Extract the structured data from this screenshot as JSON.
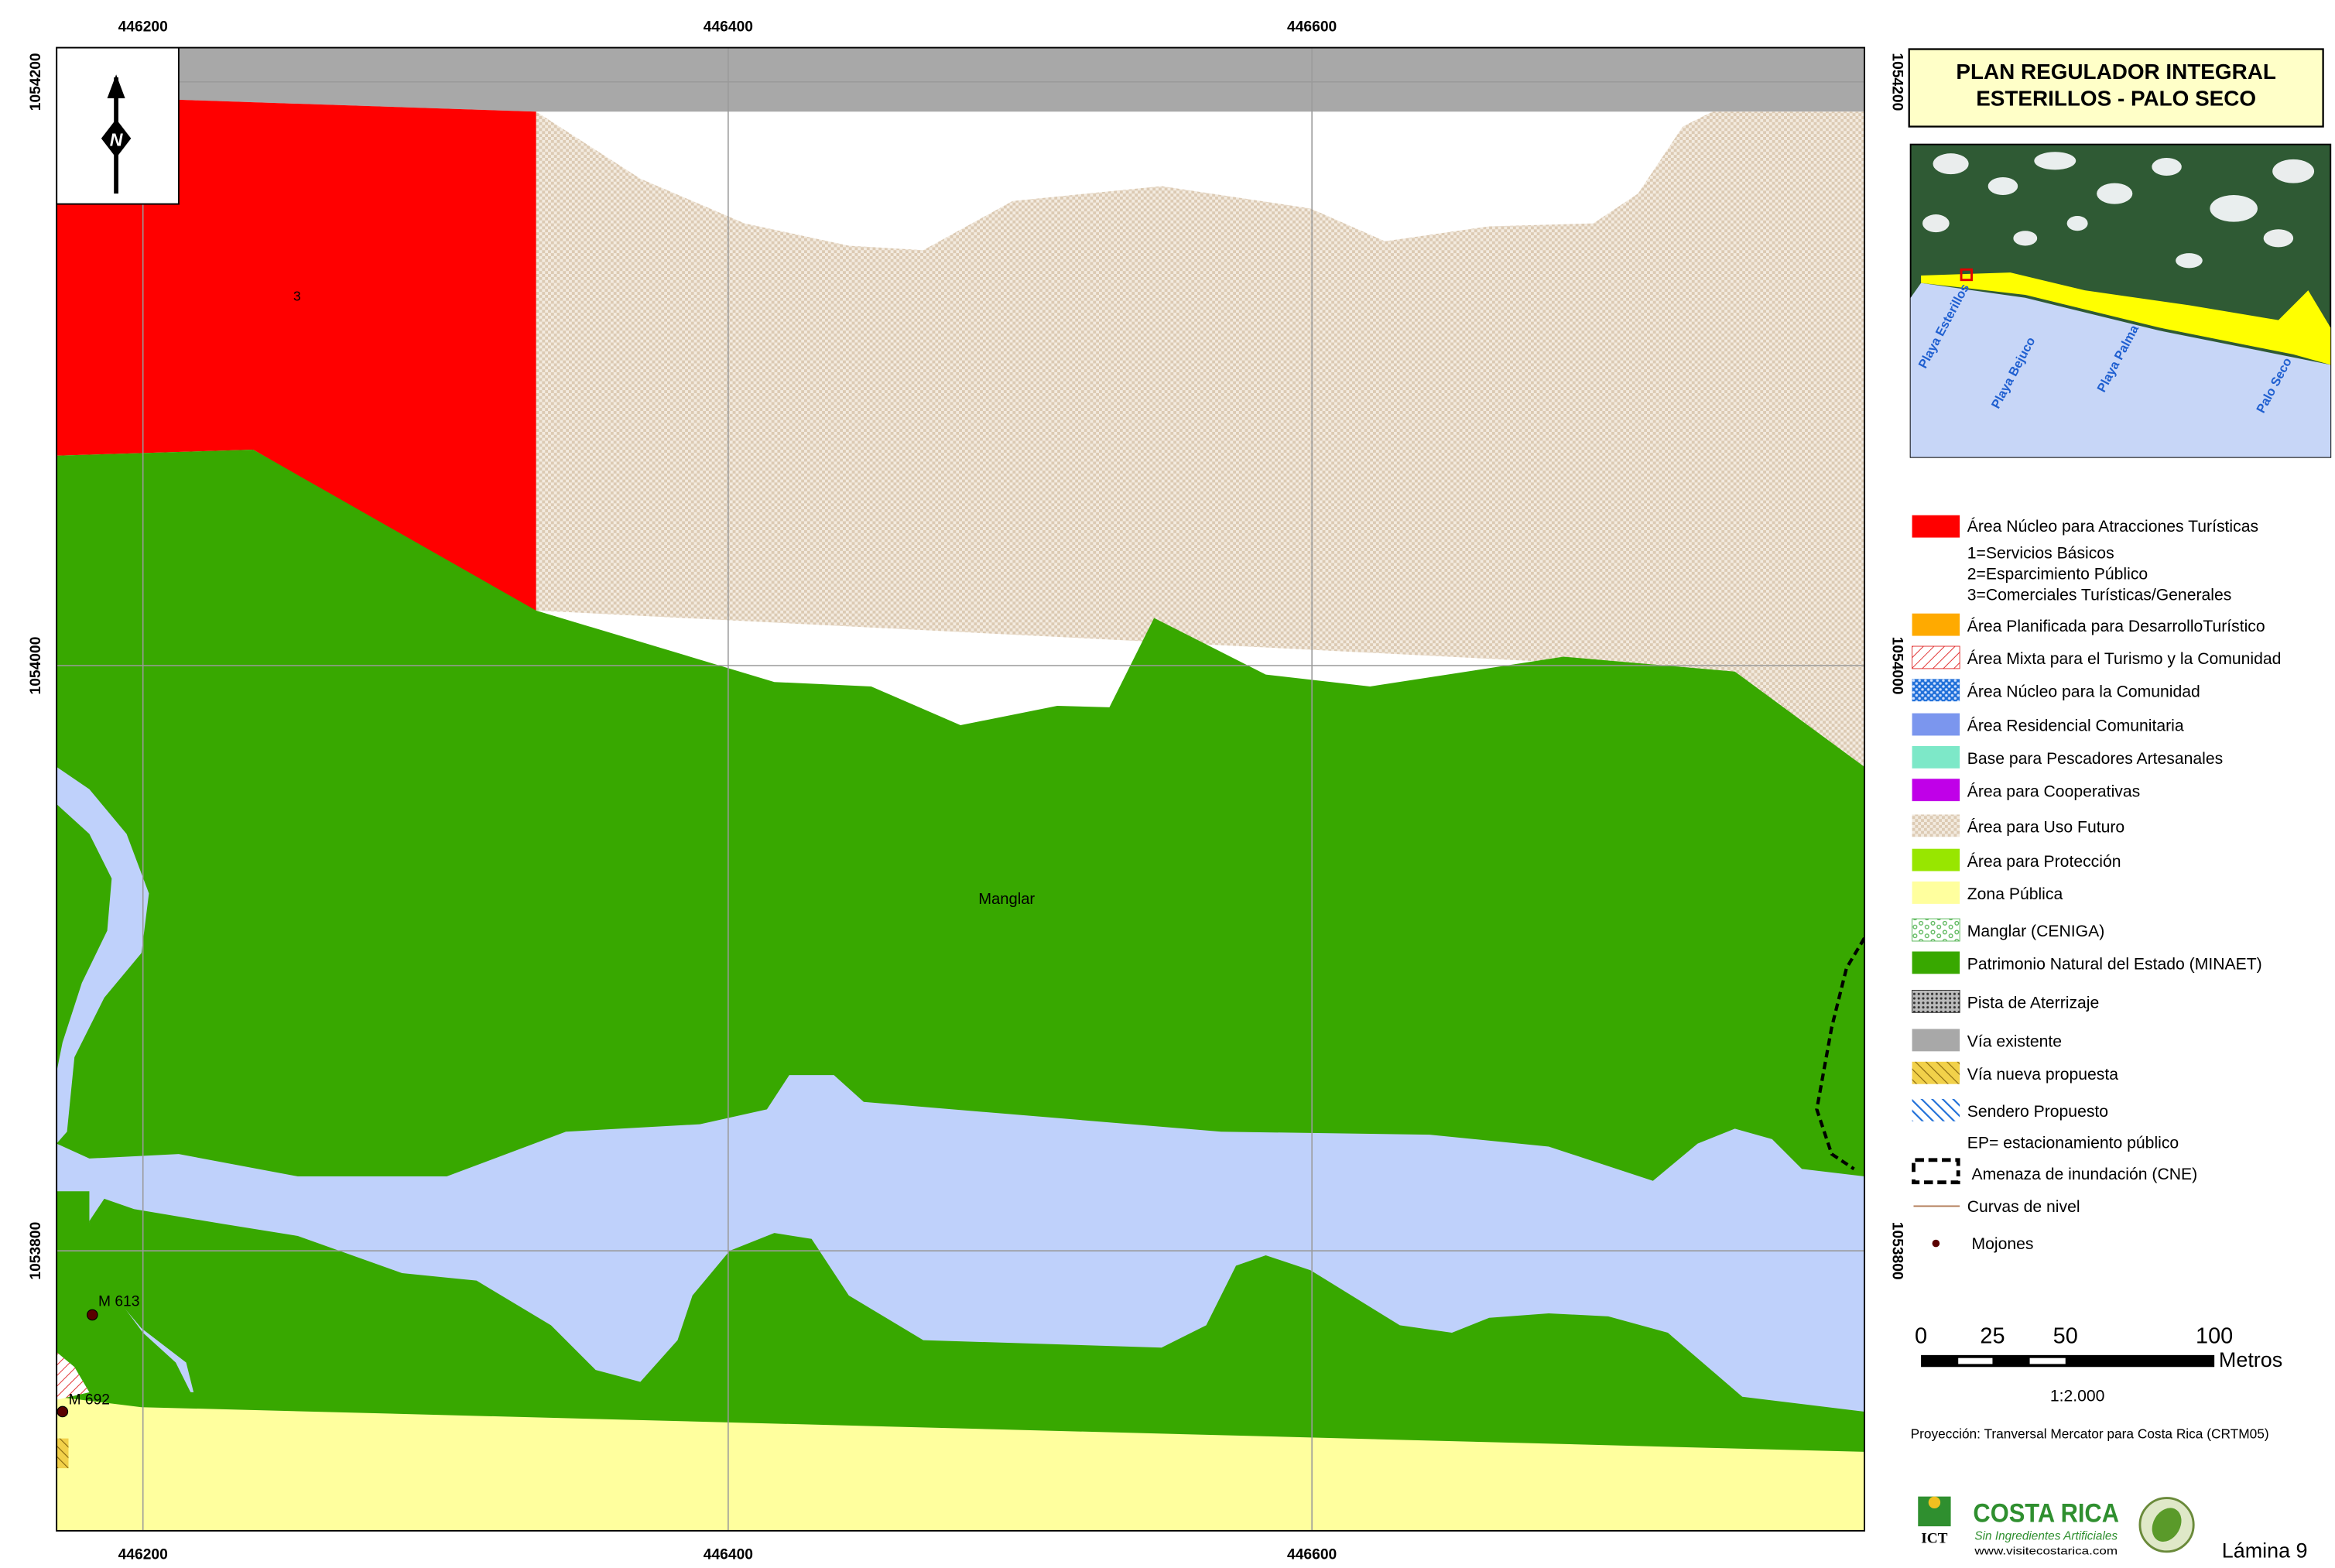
{
  "header": {
    "title_line1": "PLAN REGULADOR INTEGRAL",
    "title_line2": "ESTERILLOS - PALO SECO"
  },
  "grid": {
    "x": [
      446200,
      446400,
      446600
    ],
    "y": [
      1054200,
      1054000,
      1053800
    ]
  },
  "map_labels": {
    "zone": "3",
    "manglar": "Manglar",
    "markers": [
      "M 613",
      "M 692"
    ]
  },
  "inset": {
    "labels": [
      "Playa Esterillos",
      "Playa Bejuco",
      "Playa Palma",
      "Palo Seco"
    ]
  },
  "legend": {
    "items": [
      "Área Núcleo para Atracciones Turísticas",
      "Área Planificada para DesarrolloTurístico",
      "Área Mixta para el Turismo y la Comunidad",
      "Área Núcleo para la Comunidad",
      "Área Residencial Comunitaria",
      "Base para Pescadores Artesanales",
      "Área para Cooperativas",
      "Área para Uso Futuro",
      "Área para Protección",
      "Zona Pública",
      "Manglar (CENIGA)",
      "Patrimonio Natural del Estado (MINAET)",
      "Pista de Aterrizaje",
      "Vía existente",
      "Vía nueva propuesta",
      "Sendero Propuesto",
      "Amenaza de inundación (CNE)",
      "Curvas de nivel",
      "Mojones"
    ],
    "sublabels": [
      "1=Servicios Básicos",
      "2=Esparcimiento Público",
      "3=Comerciales Turísticas/Generales"
    ],
    "note": "EP= estacionamiento público"
  },
  "scale": {
    "ticks": [
      "0",
      "25",
      "50",
      "100"
    ],
    "unit": "Metros",
    "ratio": "1:2.000"
  },
  "footer": {
    "projection": "Proyección: Tranversal Mercator para Costa Rica (CRTM05)",
    "logo_ict": "ICT",
    "logo_cr": "COSTA RICA",
    "logo_cr_tagline": "Sin Ingredientes Artificiales",
    "logo_cr_url": "www.visitecostarica.com",
    "sheet": "Lámina 9"
  }
}
